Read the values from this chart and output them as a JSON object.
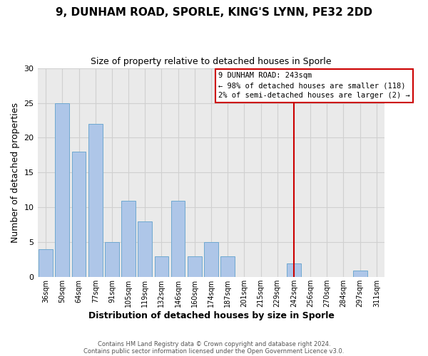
{
  "title_line1": "9, DUNHAM ROAD, SPORLE, KING'S LYNN, PE32 2DD",
  "title_line2": "Size of property relative to detached houses in Sporle",
  "xlabel": "Distribution of detached houses by size in Sporle",
  "ylabel": "Number of detached properties",
  "bar_labels": [
    "36sqm",
    "50sqm",
    "64sqm",
    "77sqm",
    "91sqm",
    "105sqm",
    "119sqm",
    "132sqm",
    "146sqm",
    "160sqm",
    "174sqm",
    "187sqm",
    "201sqm",
    "215sqm",
    "229sqm",
    "242sqm",
    "256sqm",
    "270sqm",
    "284sqm",
    "297sqm",
    "311sqm"
  ],
  "bar_values": [
    4,
    25,
    18,
    22,
    5,
    11,
    8,
    3,
    11,
    3,
    5,
    3,
    0,
    0,
    0,
    2,
    0,
    0,
    0,
    1,
    0
  ],
  "bar_color": "#aec6e8",
  "bar_edge_color": "#6fa8d0",
  "grid_color": "#d0d0d0",
  "bg_color": "#eaeaea",
  "vline_x_index": 15,
  "vline_color": "#cc0000",
  "box_text_line1": "9 DUNHAM ROAD: 243sqm",
  "box_text_line2": "← 98% of detached houses are smaller (118)",
  "box_text_line3": "2% of semi-detached houses are larger (2) →",
  "box_edge_color": "#cc0000",
  "footer_line1": "Contains HM Land Registry data © Crown copyright and database right 2024.",
  "footer_line2": "Contains public sector information licensed under the Open Government Licence v3.0.",
  "ylim": [
    0,
    30
  ],
  "yticks": [
    0,
    5,
    10,
    15,
    20,
    25,
    30
  ]
}
